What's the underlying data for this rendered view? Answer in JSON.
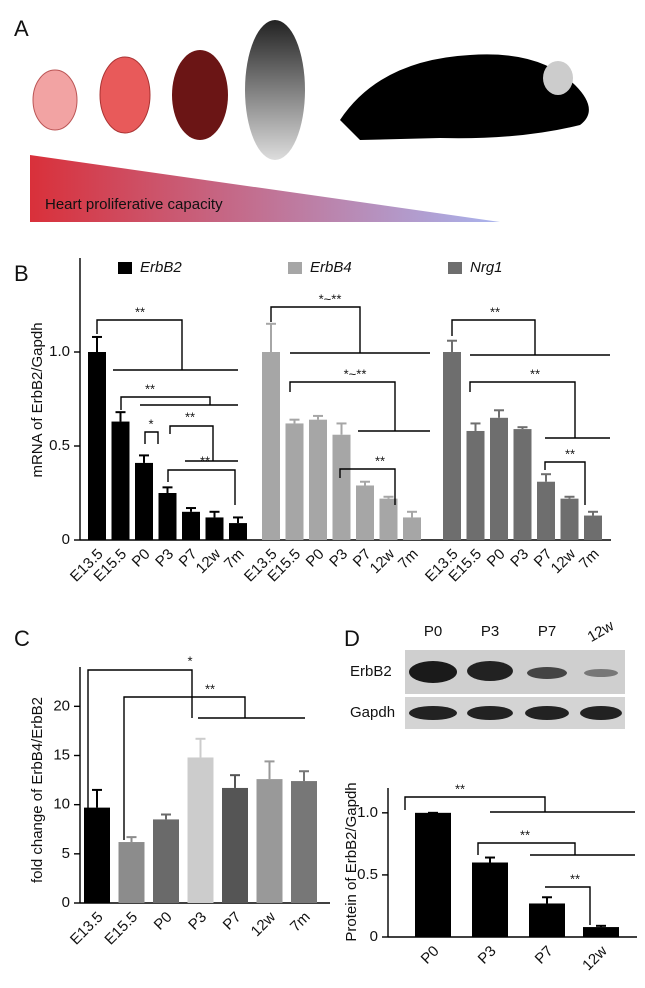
{
  "panel_labels": [
    "A",
    "B",
    "C",
    "D"
  ],
  "illustration": {
    "caption": "Heart proliferative capacity"
  },
  "western_blot": {
    "lanes": [
      "P0",
      "P3",
      "P7",
      "12w"
    ],
    "rows": [
      "ErbB2",
      "Gapdh"
    ]
  },
  "chart_data": [
    {
      "type": "bar",
      "y_label": "mRNA of ErbB2/Gapdh",
      "categories": [
        "E13.5",
        "E15.5",
        "P0",
        "P3",
        "P7",
        "12w",
        "7m"
      ],
      "series": [
        {
          "name": "ErbB2",
          "color": "#000000",
          "values": [
            1.0,
            0.63,
            0.41,
            0.25,
            0.15,
            0.12,
            0.09
          ],
          "errors": [
            0.08,
            0.05,
            0.04,
            0.03,
            0.02,
            0.03,
            0.03
          ]
        },
        {
          "name": "ErbB4",
          "color": "#a6a6a6",
          "values": [
            1.0,
            0.62,
            0.64,
            0.56,
            0.29,
            0.22,
            0.12
          ],
          "errors": [
            0.15,
            0.02,
            0.02,
            0.06,
            0.02,
            0.01,
            0.03
          ]
        },
        {
          "name": "Nrg1",
          "color": "#6e6e6e",
          "values": [
            1.0,
            0.58,
            0.65,
            0.59,
            0.31,
            0.22,
            0.13
          ],
          "errors": [
            0.06,
            0.04,
            0.04,
            0.01,
            0.04,
            0.01,
            0.02
          ]
        }
      ],
      "ylim": [
        0,
        1.5
      ],
      "yticks": [
        0,
        0.5,
        {
          "value": 1,
          "label": "1.0"
        }
      ],
      "annotations": [
        "**",
        "**",
        "*",
        "**",
        "**",
        "*~**",
        "*~**",
        "**",
        "**",
        "**",
        "**"
      ]
    },
    {
      "type": "bar",
      "y_label": "fold change of ErbB4/ErbB2",
      "categories": [
        "E13.5",
        "E15.5",
        "P0",
        "P3",
        "P7",
        "12w",
        "7m"
      ],
      "values": [
        9.7,
        6.2,
        8.5,
        14.8,
        11.7,
        12.6,
        12.4
      ],
      "errors": [
        1.8,
        0.5,
        0.5,
        1.9,
        1.3,
        1.8,
        1.0
      ],
      "colors": [
        "#000000",
        "#8c8c8c",
        "#6a6a6a",
        "#cccccc",
        "#555555",
        "#999999",
        "#777777"
      ],
      "ylim": [
        0,
        24
      ],
      "yticks": [
        0,
        5,
        10,
        15,
        20
      ],
      "annotations": [
        "*",
        "**"
      ]
    },
    {
      "type": "bar",
      "y_label": "Protein of ErbB2/Gapdh",
      "categories": [
        "P0",
        "P3",
        "P7",
        "12w"
      ],
      "values": [
        1.0,
        0.6,
        0.27,
        0.08
      ],
      "errors": [
        0,
        0.04,
        0.05,
        0.01
      ],
      "color": "#000000",
      "ylim": [
        0,
        1.2
      ],
      "yticks": [
        0,
        0.5,
        {
          "value": 1,
          "label": "1.0"
        }
      ],
      "annotations": [
        "**",
        "**",
        "**"
      ]
    }
  ]
}
